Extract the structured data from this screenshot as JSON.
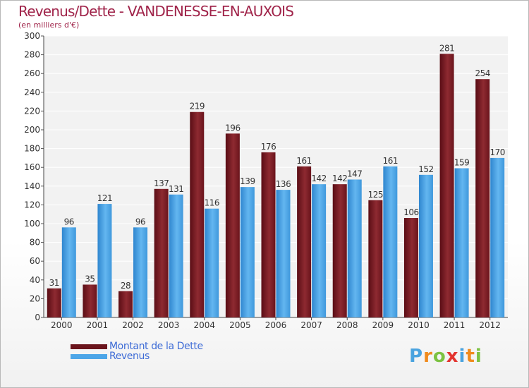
{
  "chart_data": {
    "type": "bar",
    "title": "Revenus/Dette - VANDENESSE-EN-AUXOIS",
    "subtitle": "(en milliers d'€)",
    "categories": [
      "2000",
      "2001",
      "2002",
      "2003",
      "2004",
      "2005",
      "2006",
      "2007",
      "2008",
      "2009",
      "2010",
      "2011",
      "2012"
    ],
    "series": [
      {
        "name": "Montant de la Dette",
        "color": "#7a1a22",
        "values": [
          31,
          35,
          28,
          137,
          219,
          196,
          176,
          161,
          142,
          125,
          106,
          281,
          254
        ]
      },
      {
        "name": "Revenus",
        "color": "#4da6e8",
        "values": [
          96,
          121,
          96,
          131,
          116,
          139,
          136,
          142,
          147,
          161,
          152,
          159,
          170
        ]
      }
    ],
    "ylim": [
      0,
      300
    ],
    "yticks": [
      0,
      20,
      40,
      60,
      80,
      100,
      120,
      140,
      160,
      180,
      200,
      220,
      240,
      260,
      280,
      300
    ],
    "grid": true,
    "legend_position": "bottom-left"
  },
  "logo": {
    "text": "Proxiti"
  }
}
